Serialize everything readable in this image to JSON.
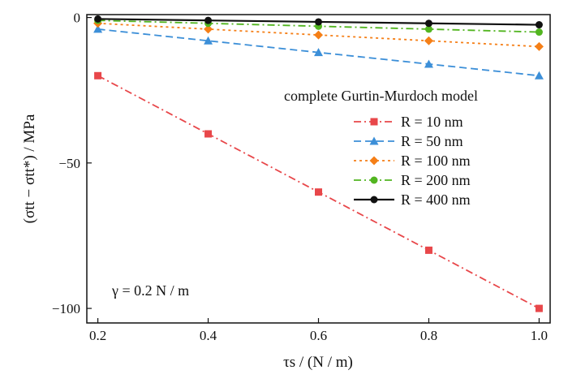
{
  "chart_data": {
    "type": "line",
    "xlabel": "τs / (N / m)",
    "ylabel": "(σtt − σtt*) / MPa",
    "xlim": [
      0.2,
      1.0
    ],
    "ylim": [
      -105,
      1
    ],
    "x_ticks": [
      "0.2",
      "0.4",
      "0.6",
      "0.8",
      "1.0"
    ],
    "y_ticks": [
      "0",
      "−50",
      "−100"
    ],
    "x_tick_values": [
      0.2,
      0.4,
      0.6,
      0.8,
      1.0
    ],
    "y_tick_values": [
      0,
      -50,
      -100
    ],
    "legend_title": "complete Gurtin-Murdoch model",
    "legend_position": "right",
    "annotation": "γ = 0.2 N / m",
    "grid": false,
    "x": [
      0.2,
      0.4,
      0.6,
      0.8,
      1.0
    ],
    "series": [
      {
        "name": "R = 10 nm",
        "values": [
          -20,
          -40,
          -60,
          -80,
          -100
        ],
        "color": "#e8474a",
        "marker": "square",
        "dash": "dashdot"
      },
      {
        "name": "R = 50 nm",
        "values": [
          -4,
          -8,
          -12,
          -16,
          -20
        ],
        "color": "#3c8fd8",
        "marker": "triangle",
        "dash": "dashed"
      },
      {
        "name": "R = 100 nm",
        "values": [
          -2,
          -4,
          -6,
          -8,
          -10
        ],
        "color": "#f57f17",
        "marker": "diamond",
        "dash": "dotted"
      },
      {
        "name": "R = 200 nm",
        "values": [
          -1,
          -2,
          -3,
          -4,
          -5
        ],
        "color": "#52b520",
        "marker": "circle",
        "dash": "dashdot"
      },
      {
        "name": "R = 400 nm",
        "values": [
          -0.5,
          -1,
          -1.5,
          -2,
          -2.5
        ],
        "color": "#111111",
        "marker": "circle",
        "dash": "solid"
      }
    ]
  }
}
